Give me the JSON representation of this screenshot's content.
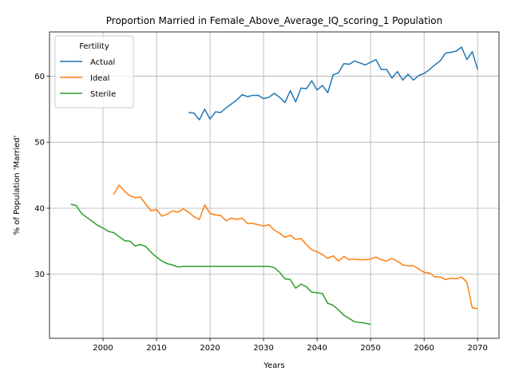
{
  "chart_data": {
    "type": "line",
    "title": "Proportion Married in Female_Above_Average_IQ_scoring_1 Population",
    "xlabel": "Years",
    "ylabel": "% of Population 'Married'",
    "xlim": [
      1990,
      2074
    ],
    "ylim": [
      20.3,
      66.7
    ],
    "xticks": [
      2000,
      2010,
      2020,
      2030,
      2040,
      2050,
      2060,
      2070
    ],
    "yticks": [
      30,
      40,
      50,
      60
    ],
    "grid": true,
    "legend": {
      "title": "Fertility",
      "placement": "upper-left"
    },
    "series": [
      {
        "name": "Actual",
        "color": "#1f77b4",
        "x": [
          2016,
          2017,
          2018,
          2019,
          2020,
          2021,
          2022,
          2023,
          2024,
          2025,
          2026,
          2027,
          2028,
          2029,
          2030,
          2031,
          2032,
          2033,
          2034,
          2035,
          2036,
          2037,
          2038,
          2039,
          2040,
          2041,
          2042,
          2043,
          2044,
          2045,
          2046,
          2047,
          2048,
          2049,
          2050,
          2051,
          2052,
          2053,
          2054,
          2055,
          2056,
          2057,
          2058,
          2059,
          2060,
          2061,
          2062,
          2063,
          2064,
          2065,
          2066,
          2067,
          2068,
          2069,
          2070
        ],
        "y": [
          54.5,
          54.4,
          53.4,
          55.0,
          53.5,
          54.6,
          54.5,
          55.2,
          55.8,
          56.4,
          57.2,
          56.9,
          57.1,
          57.1,
          56.6,
          56.8,
          57.4,
          56.8,
          56.0,
          57.8,
          56.1,
          58.2,
          58.1,
          59.3,
          57.9,
          58.6,
          57.5,
          60.2,
          60.5,
          61.9,
          61.8,
          62.3,
          62.0,
          61.7,
          62.1,
          62.5,
          61.0,
          61.0,
          59.7,
          60.7,
          59.4,
          60.3,
          59.4,
          60.1,
          60.4,
          61.0,
          61.7,
          62.3,
          63.5,
          63.6,
          63.8,
          64.4,
          62.5,
          63.7,
          61.0
        ]
      },
      {
        "name": "Ideal",
        "color": "#ff7f0e",
        "x": [
          2002,
          2003,
          2004,
          2005,
          2006,
          2007,
          2008,
          2009,
          2010,
          2011,
          2012,
          2013,
          2014,
          2015,
          2016,
          2017,
          2018,
          2019,
          2020,
          2021,
          2022,
          2023,
          2024,
          2025,
          2026,
          2027,
          2028,
          2029,
          2030,
          2031,
          2032,
          2033,
          2034,
          2035,
          2036,
          2037,
          2038,
          2039,
          2040,
          2041,
          2042,
          2043,
          2044,
          2045,
          2046,
          2047,
          2048,
          2049,
          2050,
          2051,
          2052,
          2053,
          2054,
          2055,
          2056,
          2057,
          2058,
          2059,
          2060,
          2061,
          2062,
          2063,
          2064,
          2065,
          2066,
          2067,
          2068,
          2069,
          2070
        ],
        "y": [
          42.1,
          43.5,
          42.6,
          41.9,
          41.6,
          41.7,
          40.6,
          39.6,
          39.8,
          38.8,
          39.1,
          39.6,
          39.4,
          39.9,
          39.4,
          38.7,
          38.3,
          40.5,
          39.2,
          39.0,
          38.9,
          38.1,
          38.5,
          38.3,
          38.5,
          37.7,
          37.7,
          37.5,
          37.3,
          37.5,
          36.7,
          36.2,
          35.6,
          35.9,
          35.3,
          35.4,
          34.5,
          33.7,
          33.4,
          33.0,
          32.4,
          32.8,
          32.0,
          32.7,
          32.2,
          32.3,
          32.2,
          32.2,
          32.3,
          32.6,
          32.2,
          32.0,
          32.4,
          32.0,
          31.4,
          31.3,
          31.3,
          30.8,
          30.3,
          30.2,
          29.6,
          29.6,
          29.2,
          29.4,
          29.3,
          29.6,
          28.8,
          24.9,
          24.8
        ]
      },
      {
        "name": "Sterile",
        "color": "#2ca02c",
        "x": [
          1994,
          1995,
          1996,
          1997,
          1998,
          1999,
          2000,
          2001,
          2002,
          2003,
          2004,
          2005,
          2006,
          2007,
          2008,
          2009,
          2010,
          2011,
          2012,
          2013,
          2014,
          2015,
          2016,
          2017,
          2018,
          2019,
          2020,
          2021,
          2022,
          2023,
          2024,
          2025,
          2026,
          2027,
          2028,
          2029,
          2030,
          2031,
          2032,
          2033,
          2034,
          2035,
          2036,
          2037,
          2038,
          2039,
          2040,
          2041,
          2042,
          2043,
          2044,
          2045,
          2046,
          2047,
          2048,
          2049,
          2050
        ],
        "y": [
          40.6,
          40.4,
          39.2,
          38.6,
          38.0,
          37.4,
          37.0,
          36.5,
          36.3,
          35.7,
          35.1,
          35.0,
          34.3,
          34.5,
          34.2,
          33.3,
          32.6,
          32.0,
          31.6,
          31.4,
          31.1,
          31.2,
          31.2,
          31.2,
          31.2,
          31.2,
          31.2,
          31.2,
          31.2,
          31.2,
          31.2,
          31.2,
          31.2,
          31.2,
          31.2,
          31.2,
          31.2,
          31.2,
          31.0,
          30.3,
          29.3,
          29.2,
          27.9,
          28.5,
          28.1,
          27.3,
          27.2,
          27.1,
          25.6,
          25.3,
          24.6,
          23.8,
          23.3,
          22.8,
          22.7,
          22.6,
          22.4
        ]
      }
    ]
  }
}
